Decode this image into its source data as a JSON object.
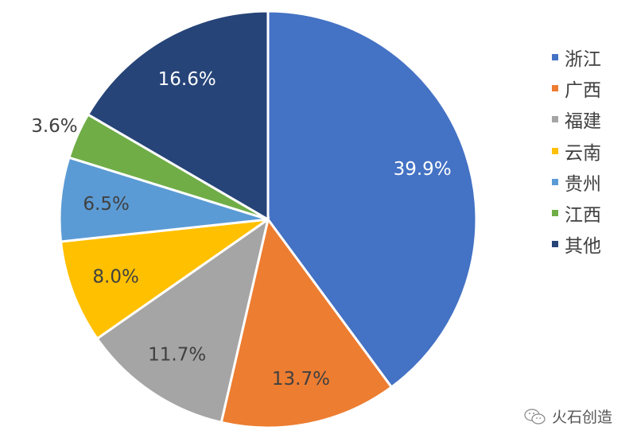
{
  "chart_data": {
    "type": "pie",
    "title": "",
    "start_angle": "top",
    "direction": "clockwise",
    "categories": [
      "浙江",
      "广西",
      "福建",
      "云南",
      "贵州",
      "江西",
      "其他"
    ],
    "values": [
      39.9,
      13.7,
      11.7,
      8.0,
      6.5,
      3.6,
      16.6
    ],
    "labels": [
      "39.9%",
      "13.7%",
      "11.7%",
      "8.0%",
      "6.5%",
      "3.6%",
      "16.6%"
    ],
    "colors": [
      "#4472C4",
      "#ED7D31",
      "#A5A5A5",
      "#FFC000",
      "#5B9BD5",
      "#70AD47",
      "#264478"
    ],
    "label_colors": [
      "#ffffff",
      "#404040",
      "#404040",
      "#404040",
      "#404040",
      "#404040",
      "#ffffff"
    ],
    "legend_position": "right"
  },
  "watermark": {
    "text": "火石创造",
    "icon": "wechat-icon"
  }
}
